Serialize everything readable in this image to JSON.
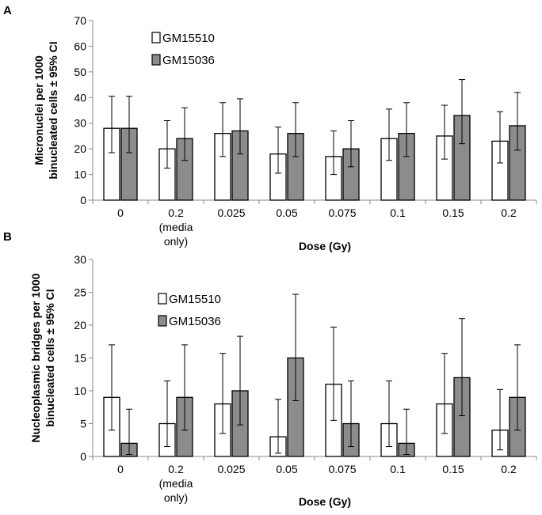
{
  "chart_data": [
    {
      "type": "bar",
      "panel_label": "A",
      "title": "",
      "xlabel": "Dose (Gy)",
      "ylabel_lines": [
        "Micronuclei per 1000",
        "binucleated cells ± 95% CI"
      ],
      "ylim": [
        0,
        70
      ],
      "ytick_step": 10,
      "categories": [
        [
          "0"
        ],
        [
          "0.2",
          "(media",
          "only)"
        ],
        [
          "0.025"
        ],
        [
          "0.05"
        ],
        [
          "0.075"
        ],
        [
          "0.1"
        ],
        [
          "0.15"
        ],
        [
          "0.2"
        ]
      ],
      "series": [
        {
          "name": "GM15510",
          "color": "#ffffff",
          "values": [
            28,
            20,
            26,
            18,
            17,
            24,
            25,
            23
          ],
          "err_low": [
            18.5,
            12.5,
            17,
            10.5,
            10,
            15.5,
            16,
            14.5
          ],
          "err_high": [
            40.5,
            31,
            38,
            28.5,
            27,
            35.5,
            37,
            34.5
          ]
        },
        {
          "name": "GM15036",
          "color": "#8c8c8c",
          "values": [
            28,
            24,
            27,
            26,
            20,
            26,
            33,
            29
          ],
          "err_low": [
            18.5,
            15.5,
            18,
            17,
            13,
            17,
            22,
            19.5
          ],
          "err_high": [
            40.5,
            36,
            39.5,
            38,
            31,
            38,
            47,
            42
          ]
        }
      ],
      "legend_position": "upper-left"
    },
    {
      "type": "bar",
      "panel_label": "B",
      "title": "",
      "xlabel": "Dose (Gy)",
      "ylabel_lines": [
        "Nucleoplasmic bridges per 1000",
        "binucleated cells ± 95% CI"
      ],
      "ylim": [
        0,
        30
      ],
      "ytick_step": 5,
      "categories": [
        [
          "0"
        ],
        [
          "0.2",
          "(media",
          "only)"
        ],
        [
          "0.025"
        ],
        [
          "0.05"
        ],
        [
          "0.075"
        ],
        [
          "0.1"
        ],
        [
          "0.15"
        ],
        [
          "0.2"
        ]
      ],
      "series": [
        {
          "name": "GM15510",
          "color": "#ffffff",
          "values": [
            9,
            5,
            8,
            3,
            11,
            5,
            8,
            4
          ],
          "err_low": [
            4,
            1.5,
            3.5,
            0.5,
            5.5,
            1.5,
            3.5,
            1
          ],
          "err_high": [
            17,
            11.5,
            15.7,
            8.7,
            19.7,
            11.5,
            15.7,
            10.2
          ]
        },
        {
          "name": "GM15036",
          "color": "#8c8c8c",
          "values": [
            2,
            9,
            10,
            15,
            5,
            2,
            12,
            9
          ],
          "err_low": [
            0.3,
            4,
            4.8,
            8.5,
            1.5,
            0.3,
            6.2,
            4
          ],
          "err_high": [
            7.2,
            17,
            18.3,
            24.7,
            11.5,
            7.2,
            21,
            17
          ]
        }
      ],
      "legend_position": "upper-left"
    }
  ]
}
